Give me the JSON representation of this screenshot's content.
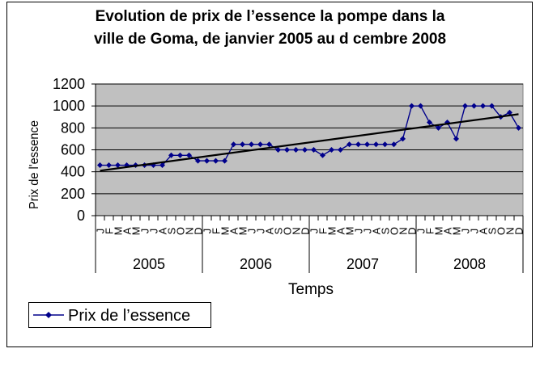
{
  "chart_data": {
    "type": "line",
    "title_line1": "Evolution de prix de l’essence    la pompe dans la",
    "title_line2": "ville de Goma, de janvier 2005 au d   cembre 2008",
    "ylabel": "Prix de l'essence",
    "xlabel": "Temps",
    "ylim": [
      0,
      1200
    ],
    "yticks": [
      0,
      200,
      400,
      600,
      800,
      1000,
      1200
    ],
    "grid": true,
    "legend_position": "bottom-left",
    "years": [
      "2005",
      "2006",
      "2007",
      "2008"
    ],
    "months": [
      "J",
      "F",
      "M",
      "A",
      "M",
      "J",
      "J",
      "A",
      "S",
      "O",
      "N",
      "D"
    ],
    "series": [
      {
        "name": "Prix de l’essence",
        "color": "#00008b",
        "values": [
          460,
          460,
          460,
          460,
          460,
          460,
          460,
          460,
          550,
          550,
          550,
          500,
          500,
          500,
          500,
          650,
          650,
          650,
          650,
          650,
          600,
          600,
          600,
          600,
          600,
          550,
          600,
          600,
          650,
          650,
          650,
          650,
          650,
          650,
          700,
          1000,
          1000,
          850,
          800,
          850,
          700,
          1000,
          1000,
          1000,
          1000,
          900,
          940,
          800
        ]
      }
    ],
    "trendline": {
      "type": "linear",
      "color": "#000000",
      "start": 410,
      "end": 925
    }
  }
}
